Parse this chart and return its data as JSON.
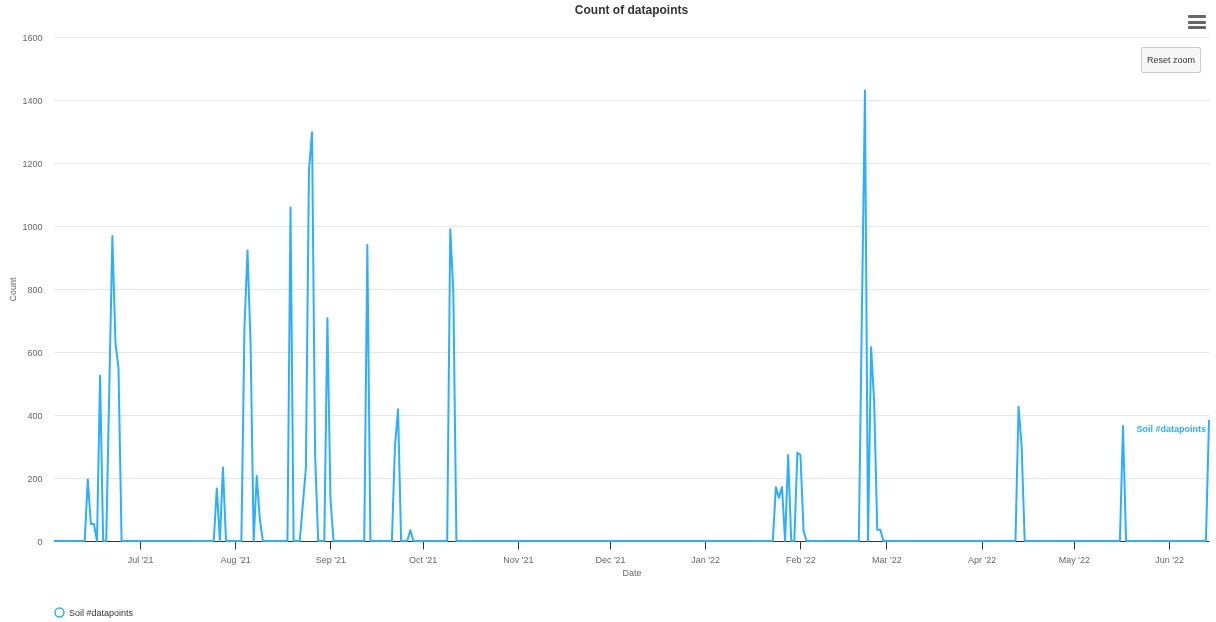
{
  "chart_data": {
    "type": "line",
    "title": "Count of datapoints",
    "xlabel": "Date",
    "ylabel": "Count",
    "series": [
      {
        "name": "Soil #datapoints",
        "color": "#2caffe",
        "x": [
          "2021-06-03",
          "2021-06-13",
          "2021-06-14",
          "2021-06-15",
          "2021-06-16",
          "2021-06-17",
          "2021-06-18",
          "2021-06-19",
          "2021-06-20",
          "2021-06-22",
          "2021-06-23",
          "2021-06-24",
          "2021-06-25",
          "2021-07-25",
          "2021-07-26",
          "2021-07-27",
          "2021-07-28",
          "2021-07-29",
          "2021-08-03",
          "2021-08-04",
          "2021-08-05",
          "2021-08-06",
          "2021-08-07",
          "2021-08-08",
          "2021-08-09",
          "2021-08-10",
          "2021-08-18",
          "2021-08-19",
          "2021-08-20",
          "2021-08-22",
          "2021-08-24",
          "2021-08-25",
          "2021-08-26",
          "2021-08-27",
          "2021-08-28",
          "2021-08-30",
          "2021-08-31",
          "2021-09-01",
          "2021-09-02",
          "2021-09-12",
          "2021-09-13",
          "2021-09-14",
          "2021-09-21",
          "2021-09-22",
          "2021-09-23",
          "2021-09-24",
          "2021-09-26",
          "2021-09-27",
          "2021-09-28",
          "2021-10-09",
          "2021-10-10",
          "2021-10-11",
          "2021-10-12",
          "2022-01-23",
          "2022-01-24",
          "2022-01-25",
          "2022-01-26",
          "2022-01-27",
          "2022-01-28",
          "2022-01-29",
          "2022-01-30",
          "2022-01-31",
          "2022-02-01",
          "2022-02-02",
          "2022-02-03",
          "2022-02-20",
          "2022-02-22",
          "2022-02-23",
          "2022-02-24",
          "2022-02-25",
          "2022-02-26",
          "2022-02-27",
          "2022-02-28",
          "2022-04-12",
          "2022-04-13",
          "2022-04-14",
          "2022-04-15",
          "2022-05-16",
          "2022-05-17",
          "2022-05-18",
          "2022-06-13",
          "2022-06-14"
        ],
        "values": [
          0,
          0,
          195,
          54,
          54,
          0,
          525,
          0,
          0,
          968,
          629,
          548,
          0,
          0,
          167,
          0,
          233,
          0,
          0,
          677,
          922,
          624,
          0,
          206,
          70,
          0,
          0,
          1059,
          0,
          0,
          231,
          1177,
          1298,
          274,
          0,
          0,
          707,
          134,
          0,
          0,
          940,
          0,
          0,
          301,
          418,
          0,
          0,
          34,
          0,
          0,
          990,
          790,
          0,
          0,
          171,
          137,
          171,
          0,
          273,
          0,
          0,
          280,
          273,
          33,
          0,
          0,
          1430,
          0,
          615,
          441,
          36,
          36,
          0,
          0,
          426,
          302,
          0,
          0,
          365,
          0,
          0,
          384
        ]
      }
    ],
    "xlim": [
      "2021-06-03",
      "2022-06-14"
    ],
    "xticks": [
      {
        "value": "2021-07-01",
        "label": "Jul '21"
      },
      {
        "value": "2021-08-01",
        "label": "Aug '21"
      },
      {
        "value": "2021-09-01",
        "label": "Sep '21"
      },
      {
        "value": "2021-10-01",
        "label": "Oct '21"
      },
      {
        "value": "2021-11-01",
        "label": "Nov '21"
      },
      {
        "value": "2021-12-01",
        "label": "Dec '21"
      },
      {
        "value": "2022-01-01",
        "label": "Jan '22"
      },
      {
        "value": "2022-02-01",
        "label": "Feb '22"
      },
      {
        "value": "2022-03-01",
        "label": "Mar '22"
      },
      {
        "value": "2022-04-01",
        "label": "Apr '22"
      },
      {
        "value": "2022-05-01",
        "label": "May '22"
      },
      {
        "value": "2022-06-01",
        "label": "Jun '22"
      }
    ],
    "ylim": [
      0,
      1600
    ],
    "yticks": [
      0,
      200,
      400,
      600,
      800,
      1000,
      1200,
      1400,
      1600
    ],
    "grid": "y",
    "legend": "bottom",
    "marker": "none",
    "line_style": "solid",
    "annotations": [
      "Reset zoom"
    ]
  }
}
